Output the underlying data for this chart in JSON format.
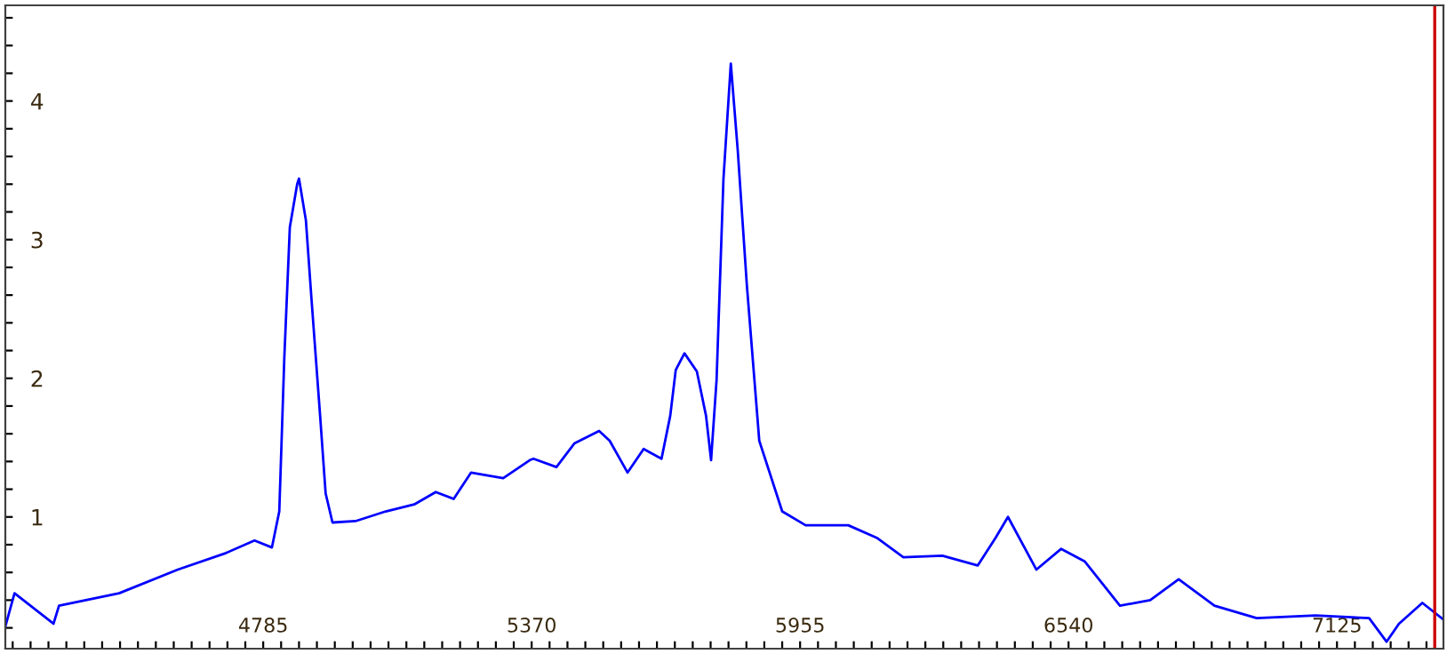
{
  "chart_data": {
    "type": "line",
    "xlim": [
      4223,
      7357
    ],
    "ylim": [
      0.05,
      4.69
    ],
    "x": [
      4223,
      4243,
      4328,
      4340,
      4471,
      4599,
      4704,
      4766,
      4804,
      4820,
      4831,
      4843,
      4859,
      4863,
      4878,
      4890,
      4909,
      4921,
      4936,
      4986,
      5052,
      5114,
      5161,
      5200,
      5238,
      5308,
      5366,
      5374,
      5424,
      5463,
      5517,
      5540,
      5579,
      5614,
      5653,
      5672,
      5684,
      5703,
      5730,
      5750,
      5761,
      5773,
      5788,
      5804,
      5819,
      5839,
      5866,
      5916,
      5967,
      6060,
      6122,
      6180,
      6265,
      6342,
      6381,
      6408,
      6470,
      6524,
      6575,
      6652,
      6718,
      6780,
      6858,
      6950,
      7078,
      7195,
      7233,
      7260,
      7311,
      7357
    ],
    "series": [
      {
        "color": "#0000ff",
        "values": [
          0.21,
          0.45,
          0.23,
          0.36,
          0.45,
          0.62,
          0.74,
          0.83,
          0.78,
          1.04,
          2.15,
          3.09,
          3.4,
          3.44,
          3.14,
          2.58,
          1.73,
          1.17,
          0.96,
          0.97,
          1.04,
          1.09,
          1.18,
          1.13,
          1.32,
          1.28,
          1.41,
          1.42,
          1.36,
          1.53,
          1.62,
          1.55,
          1.32,
          1.49,
          1.42,
          1.73,
          2.06,
          2.18,
          2.05,
          1.73,
          1.41,
          1.99,
          3.44,
          4.27,
          3.65,
          2.67,
          1.55,
          1.04,
          0.94,
          0.94,
          0.85,
          0.71,
          0.72,
          0.65,
          0.85,
          1.0,
          0.62,
          0.77,
          0.68,
          0.36,
          0.4,
          0.55,
          0.36,
          0.27,
          0.29,
          0.27,
          0.1,
          0.23,
          0.38,
          0.26
        ]
      }
    ],
    "xticks": [
      {
        "value": 4239,
        "label": null
      },
      {
        "value": 4278,
        "label": null
      },
      {
        "value": 4317,
        "label": null
      },
      {
        "value": 4356,
        "label": null
      },
      {
        "value": 4395,
        "label": null
      },
      {
        "value": 4434,
        "label": null
      },
      {
        "value": 4473,
        "label": null
      },
      {
        "value": 4512,
        "label": null
      },
      {
        "value": 4551,
        "label": null
      },
      {
        "value": 4590,
        "label": null
      },
      {
        "value": 4629,
        "label": null
      },
      {
        "value": 4668,
        "label": null
      },
      {
        "value": 4707,
        "label": null
      },
      {
        "value": 4746,
        "label": null
      },
      4785,
      {
        "value": 4824,
        "label": null
      },
      {
        "value": 4863,
        "label": null
      },
      {
        "value": 4902,
        "label": null
      },
      {
        "value": 4941,
        "label": null
      },
      {
        "value": 4980,
        "label": null
      },
      {
        "value": 5019,
        "label": null
      },
      {
        "value": 5058,
        "label": null
      },
      {
        "value": 5097,
        "label": null
      },
      {
        "value": 5136,
        "label": null
      },
      {
        "value": 5175,
        "label": null
      },
      {
        "value": 5214,
        "label": null
      },
      {
        "value": 5253,
        "label": null
      },
      {
        "value": 5292,
        "label": null
      },
      {
        "value": 5331,
        "label": null
      },
      5370,
      {
        "value": 5409,
        "label": null
      },
      {
        "value": 5448,
        "label": null
      },
      {
        "value": 5487,
        "label": null
      },
      {
        "value": 5526,
        "label": null
      },
      {
        "value": 5565,
        "label": null
      },
      {
        "value": 5604,
        "label": null
      },
      {
        "value": 5643,
        "label": null
      },
      {
        "value": 5682,
        "label": null
      },
      {
        "value": 5721,
        "label": null
      },
      {
        "value": 5760,
        "label": null
      },
      {
        "value": 5799,
        "label": null
      },
      {
        "value": 5838,
        "label": null
      },
      {
        "value": 5877,
        "label": null
      },
      {
        "value": 5916,
        "label": null
      },
      5955,
      {
        "value": 5994,
        "label": null
      },
      {
        "value": 6033,
        "label": null
      },
      {
        "value": 6072,
        "label": null
      },
      {
        "value": 6111,
        "label": null
      },
      {
        "value": 6150,
        "label": null
      },
      {
        "value": 6189,
        "label": null
      },
      {
        "value": 6228,
        "label": null
      },
      {
        "value": 6267,
        "label": null
      },
      {
        "value": 6306,
        "label": null
      },
      {
        "value": 6345,
        "label": null
      },
      {
        "value": 6384,
        "label": null
      },
      {
        "value": 6423,
        "label": null
      },
      {
        "value": 6462,
        "label": null
      },
      {
        "value": 6501,
        "label": null
      },
      6540,
      {
        "value": 6579,
        "label": null
      },
      {
        "value": 6618,
        "label": null
      },
      {
        "value": 6657,
        "label": null
      },
      {
        "value": 6696,
        "label": null
      },
      {
        "value": 6735,
        "label": null
      },
      {
        "value": 6774,
        "label": null
      },
      {
        "value": 6813,
        "label": null
      },
      {
        "value": 6852,
        "label": null
      },
      {
        "value": 6891,
        "label": null
      },
      {
        "value": 6930,
        "label": null
      },
      {
        "value": 6969,
        "label": null
      },
      {
        "value": 7008,
        "label": null
      },
      {
        "value": 7047,
        "label": null
      },
      {
        "value": 7086,
        "label": null
      },
      7125,
      {
        "value": 7164,
        "label": null
      },
      {
        "value": 7203,
        "label": null
      },
      {
        "value": 7242,
        "label": null
      },
      {
        "value": 7281,
        "label": null
      },
      {
        "value": 7320,
        "label": null
      }
    ],
    "yticks": [
      {
        "value": 0.2,
        "label": null
      },
      {
        "value": 0.4,
        "label": null
      },
      {
        "value": 0.6,
        "label": null
      },
      {
        "value": 0.8,
        "label": null
      },
      1,
      {
        "value": 1.2,
        "label": null
      },
      {
        "value": 1.4,
        "label": null
      },
      {
        "value": 1.6,
        "label": null
      },
      {
        "value": 1.8,
        "label": null
      },
      2,
      {
        "value": 2.2,
        "label": null
      },
      {
        "value": 2.4,
        "label": null
      },
      {
        "value": 2.6,
        "label": null
      },
      {
        "value": 2.8,
        "label": null
      },
      3,
      {
        "value": 3.2,
        "label": null
      },
      {
        "value": 3.4,
        "label": null
      },
      {
        "value": 3.6,
        "label": null
      },
      {
        "value": 3.8,
        "label": null
      },
      4,
      {
        "value": 4.2,
        "label": null
      },
      {
        "value": 4.4,
        "label": null
      },
      {
        "value": 4.6,
        "label": null
      }
    ],
    "ref_lines": [
      {
        "axis": "x",
        "value": 7338,
        "color": "#cc0000"
      }
    ],
    "grid": false,
    "marker": "none",
    "line_style": "solid"
  }
}
